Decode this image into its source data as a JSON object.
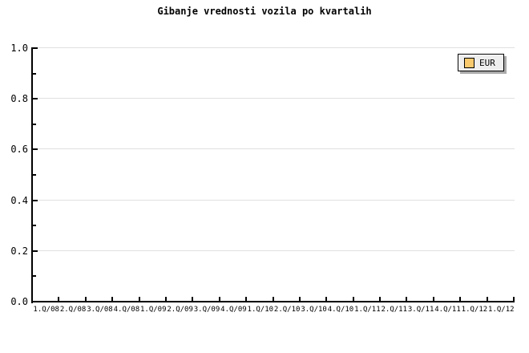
{
  "chart_data": {
    "type": "bar",
    "title": "Gibanje vrednosti vozila po kvartalih",
    "categories": [
      "1.Q/08",
      "2.Q/08",
      "3.Q/08",
      "4.Q/08",
      "1.Q/09",
      "2.Q/09",
      "3.Q/09",
      "4.Q/09",
      "1.Q/10",
      "2.Q/10",
      "3.Q/10",
      "4.Q/10",
      "1.Q/11",
      "2.Q/11",
      "3.Q/11",
      "4.Q/11",
      "1.Q/12",
      "1.Q/12"
    ],
    "series": [
      {
        "name": "EUR",
        "values": []
      }
    ],
    "xlabel": "",
    "ylabel": "",
    "ylim": [
      0.0,
      1.0
    ],
    "y_ticks": [
      "0.0",
      "0.2",
      "0.4",
      "0.6",
      "0.8",
      "1.0"
    ],
    "y_minor_tick_step": 0.1,
    "grid": "horizontal-major-only",
    "legend_position": "top-right",
    "plot_empty": true
  },
  "legend": {
    "items": [
      {
        "label": "EUR",
        "swatch_color": "#f9c96e"
      }
    ]
  },
  "colors": {
    "background": "#ffffff",
    "axis": "#000000",
    "gridline": "#e0e0e0",
    "legend_bg": "#eeeeee",
    "legend_border": "#000000",
    "legend_shadow": "#aaaaaa",
    "series_eur": "#f9c96e",
    "text": "#000000"
  }
}
